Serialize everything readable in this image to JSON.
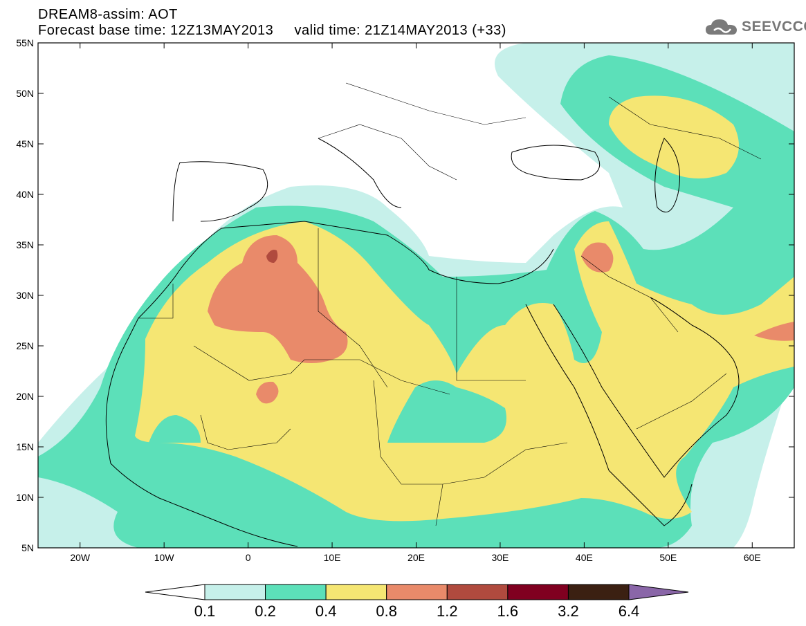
{
  "header": {
    "title_line1": "DREAM8-assim: AOT",
    "title_line2": "Forecast base time: 12Z13MAY2013     valid time: 21Z14MAY2013 (+33)"
  },
  "logo": {
    "text": "SEEVCCC",
    "icon": "cloud-icon",
    "color": "#777777"
  },
  "map": {
    "lon_range": [
      -25,
      65
    ],
    "lat_range": [
      5,
      55
    ],
    "lat_ticks": [
      "55N",
      "50N",
      "45N",
      "40N",
      "35N",
      "30N",
      "25N",
      "20N",
      "15N",
      "10N",
      "5N"
    ],
    "lon_ticks": [
      "20W",
      "10W",
      "0",
      "10E",
      "20E",
      "30E",
      "40E",
      "50E",
      "60E"
    ]
  },
  "colorbar": {
    "colors": [
      "#ffffff",
      "#c6f0ea",
      "#5ce0b9",
      "#f5e673",
      "#e98a6a",
      "#b04a3e",
      "#800020",
      "#3b2012",
      "#8a66a8"
    ],
    "labels": [
      "0.1",
      "0.2",
      "0.4",
      "0.8",
      "1.2",
      "1.6",
      "3.2",
      "6.4"
    ]
  }
}
